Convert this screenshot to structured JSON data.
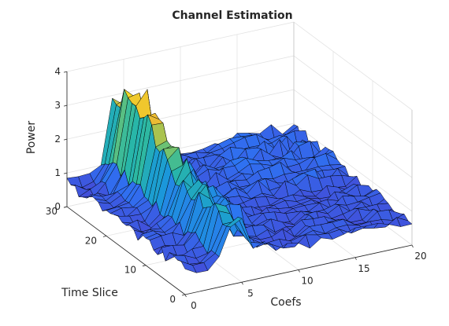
{
  "chart_data": {
    "type": "surface",
    "title": "Channel Estimation",
    "xlabel": "Coefs",
    "ylabel": "Time Slice",
    "zlabel": "Power",
    "xlim": [
      0,
      20
    ],
    "ylim": [
      0,
      30
    ],
    "zlim": [
      0,
      4
    ],
    "xticks": [
      "0",
      "5",
      "10",
      "15",
      "20"
    ],
    "yticks": [
      "0",
      "10",
      "20",
      "30"
    ],
    "zticks": [
      "0",
      "1",
      "2",
      "3",
      "4"
    ],
    "grid": true,
    "colormap": "parula",
    "x_samples": 21,
    "y_samples": 31,
    "peak": {
      "coef": 4,
      "time_slice": 25,
      "power": 3.5
    },
    "ridge": {
      "coef_range": [
        3,
        6
      ],
      "power_range": [
        1.5,
        3.5
      ]
    }
  }
}
